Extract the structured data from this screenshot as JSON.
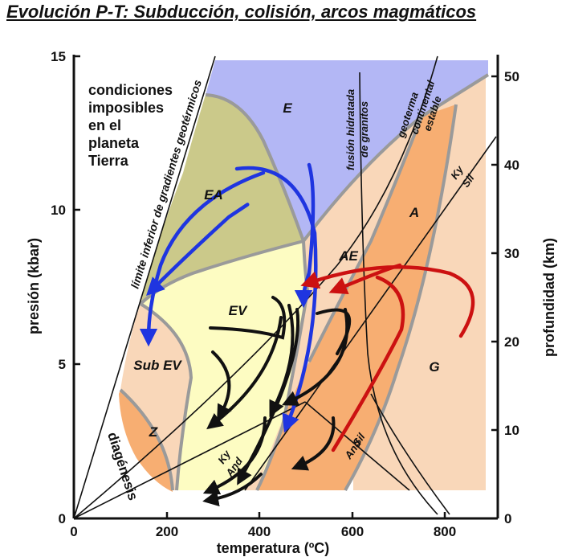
{
  "title": "Evolución P-T: Subducción, colisión, arcos magmáticos",
  "axes": {
    "x_title": "temperatura (ºC)",
    "y_left_title": "presión (kbar)",
    "y_right_title": "profundidad (km)",
    "x_ticks": [
      "0",
      "200",
      "400",
      "600",
      "800"
    ],
    "y_left_ticks": [
      "0",
      "5",
      "10",
      "15"
    ],
    "y_right_ticks": [
      "0",
      "10",
      "20",
      "30",
      "40",
      "50"
    ]
  },
  "impossible_note": [
    "condiciones",
    "imposibles",
    "en el",
    "planeta",
    "Tierra"
  ],
  "fields": {
    "E": "E",
    "EA": "EA",
    "EV": "EV",
    "AE": "AE",
    "A": "A",
    "G": "G",
    "SubEV": "Sub EV",
    "Z": "Z"
  },
  "curve_labels": {
    "limit_gradient": "límite inferior de gradientes geotérmicos",
    "melting_1": "fusión hidratada",
    "melting_2": "de granitos",
    "geotherm_1": "geoterma",
    "geotherm_2": "continental",
    "geotherm_3": "estable",
    "ky_upper": "Ky",
    "sil_upper": "Sil",
    "ky_lower": "Ky",
    "and_lower": "And",
    "sil_lower": "Sil",
    "and_right": "And",
    "diagenesis": "diagénesis"
  },
  "colors": {
    "blueschist": "#b3b7f5",
    "eclogite_amph": "#cbc98a",
    "greenschist": "#fdfcc2",
    "amphibolite": "#f7ae72",
    "granulite": "#f9d7b9",
    "zeolite": "#f7ae72",
    "boundary": "#9a9a9a",
    "path_blue": "#1f35e0",
    "path_black": "#111111",
    "path_red": "#cc1111"
  }
}
